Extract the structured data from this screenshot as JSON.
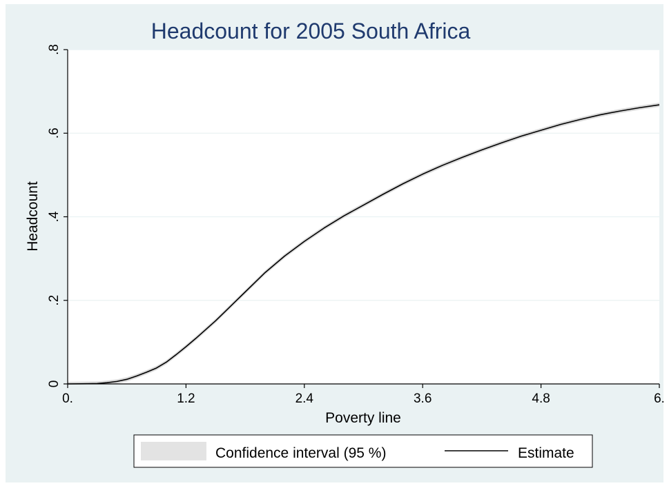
{
  "chart_data": {
    "type": "line",
    "title": "Headcount for 2005 South Africa",
    "xlabel": "Poverty line",
    "ylabel": "Headcount",
    "xlim": [
      0,
      6
    ],
    "ylim": [
      0,
      0.8
    ],
    "x_ticks": [
      {
        "value": 0,
        "label": "0."
      },
      {
        "value": 1.2,
        "label": "1.2"
      },
      {
        "value": 2.4,
        "label": "2.4"
      },
      {
        "value": 3.6,
        "label": "3.6"
      },
      {
        "value": 4.8,
        "label": "4.8"
      },
      {
        "value": 6,
        "label": "6."
      }
    ],
    "y_ticks": [
      {
        "value": 0,
        "label": "0"
      },
      {
        "value": 0.2,
        "label": ".2"
      },
      {
        "value": 0.4,
        "label": ".4"
      },
      {
        "value": 0.6,
        "label": ".6"
      },
      {
        "value": 0.8,
        "label": ".8"
      }
    ],
    "grid": true,
    "legend_position": "bottom",
    "colors": {
      "background": "#eaf2f3",
      "plot_area": "#ffffff",
      "title": "#1f3a6e",
      "line": "#000000",
      "ci_band": "#d9d9d9",
      "grid": "#eaf2f3"
    },
    "series": [
      {
        "name": "Estimate",
        "x": [
          0,
          0.2,
          0.3,
          0.4,
          0.5,
          0.6,
          0.7,
          0.8,
          0.9,
          1.0,
          1.1,
          1.2,
          1.3,
          1.4,
          1.5,
          1.6,
          1.7,
          1.8,
          1.9,
          2.0,
          2.2,
          2.4,
          2.6,
          2.8,
          3.0,
          3.2,
          3.4,
          3.6,
          3.8,
          4.0,
          4.2,
          4.4,
          4.6,
          4.8,
          5.0,
          5.2,
          5.4,
          5.6,
          5.8,
          6.0
        ],
        "y": [
          0,
          0.0005,
          0.001,
          0.003,
          0.006,
          0.011,
          0.019,
          0.028,
          0.038,
          0.052,
          0.07,
          0.089,
          0.109,
          0.13,
          0.151,
          0.174,
          0.197,
          0.22,
          0.243,
          0.266,
          0.306,
          0.341,
          0.373,
          0.402,
          0.428,
          0.454,
          0.479,
          0.502,
          0.523,
          0.542,
          0.56,
          0.577,
          0.593,
          0.607,
          0.621,
          0.633,
          0.644,
          0.653,
          0.661,
          0.668
        ]
      }
    ],
    "confidence_interval": {
      "name": "Confidence interval (95 %)",
      "half_width": 0.005
    }
  }
}
